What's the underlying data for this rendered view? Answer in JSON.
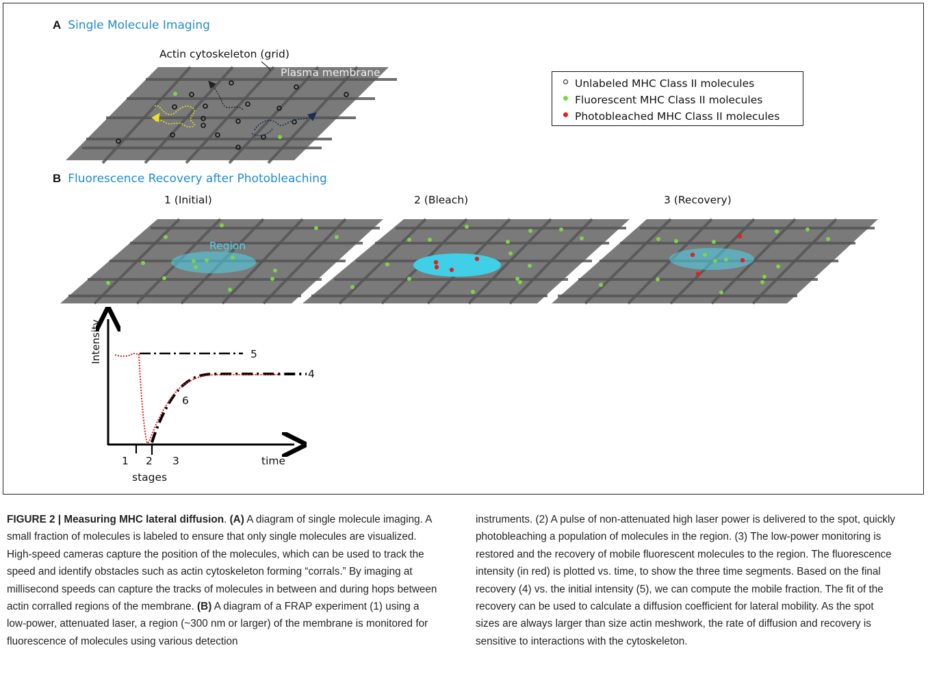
{
  "panel_a": {
    "letter": "A",
    "title": "Single Molecule Imaging",
    "actin_label": "Actin cytoskeleton (grid)",
    "membrane_label": "Plasma membrane"
  },
  "legend": {
    "items": [
      {
        "label": "Unlabeled MHC Class II molecules",
        "color": "#ffffff"
      },
      {
        "label": "Fluorescent MHC Class II molecules",
        "color": "#7dd34a"
      },
      {
        "label": "Photobleached  MHC Class II molecules",
        "color": "#e32020"
      }
    ]
  },
  "panel_b": {
    "letter": "B",
    "title": "Fluorescence Recovery after Photobleaching",
    "stages": [
      "1 (Initial)",
      "2 (Bleach)",
      "3  (Recovery)"
    ],
    "region_label": "Region"
  },
  "graph": {
    "ylabel": "Intensity",
    "xlabel": "time",
    "stage_ticks": [
      "1",
      "2",
      "3"
    ],
    "stage_axis_label": "stages",
    "curve_labels": [
      "5",
      "4",
      "6"
    ]
  },
  "colors": {
    "panel_title": "#1f8bd0",
    "membrane": "#7a7a7a",
    "grid": "#4e4e4e",
    "fluorescent": "#7dd34a",
    "bleached": "#e32020",
    "region": "#3fd0e8",
    "intensity_curve": "#e32020"
  },
  "caption": {
    "left": [
      {
        "bold": "FIGURE 2 | Measuring MHC lateral diffusion",
        "text": ". "
      },
      {
        "bold": "(A)",
        "text": " A diagram of single molecule imaging. A small fraction of molecules is labeled to ensure that only single molecules are visualized. High-speed cameras capture the position of the molecules, which can be used to track the speed and identify obstacles such as actin cytoskeleton forming “corrals.” By imaging at millisecond speeds can capture the tracks of molecules in between and during hops between actin corralled regions of the membrane. "
      },
      {
        "bold": "(B)",
        "text": " A diagram of a FRAP experiment (1) using a low-power, attenuated laser, a region (~300 nm or larger) of the membrane is monitored for fluorescence of molecules using various detection"
      }
    ],
    "right": "instruments. (2) A pulse of non-attenuated high laser power is delivered to the spot, quickly photobleaching a population of molecules in the region. (3) The low-power monitoring is restored and the recovery of mobile fluorescent molecules to the region. The fluorescence intensity (in red) is plotted vs. time, to show the three time segments. Based on the final recovery (4) vs. the initial intensity (5), we can compute the mobile fraction. The fit of the recovery can be used to calculate a diffusion coefficient for lateral mobility. As the spot sizes are always larger than size actin meshwork, the rate of diffusion and recovery is sensitive to interactions with the cytoskeleton."
  }
}
